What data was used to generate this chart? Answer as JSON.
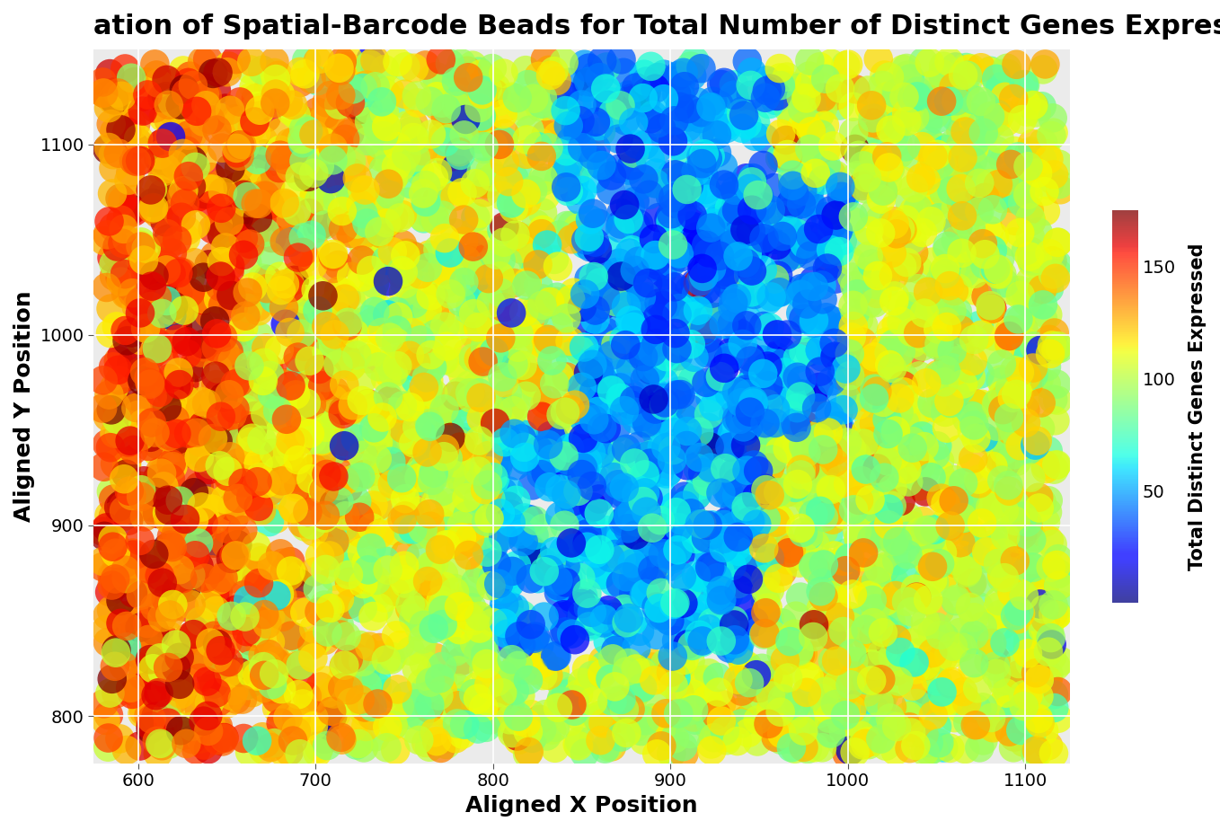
{
  "title": "ation of Spatial-Barcode Beads for Total Number of Distinct Genes Expressed",
  "xlabel": "Aligned X Position",
  "ylabel": "Aligned Y Position",
  "xlim": [
    575,
    1125
  ],
  "ylim": [
    775,
    1150
  ],
  "xticks": [
    600,
    700,
    800,
    900,
    1000,
    1100
  ],
  "yticks": [
    800,
    900,
    1000,
    1100
  ],
  "colorbar_label": "Total Distinct Genes Expressed",
  "colorbar_ticks": [
    50,
    100,
    150
  ],
  "vmin": 0,
  "vmax": 175,
  "n_points": 5000,
  "x_range": [
    580,
    1120
  ],
  "y_range": [
    780,
    1145
  ],
  "background_color": "#EBEBEB",
  "grid_color": "#FFFFFF",
  "title_fontsize": 22,
  "axis_label_fontsize": 18,
  "tick_fontsize": 14,
  "colorbar_title_fontsize": 15,
  "colorbar_tick_fontsize": 14,
  "marker_size": 550,
  "alpha": 0.75,
  "seed": 42
}
